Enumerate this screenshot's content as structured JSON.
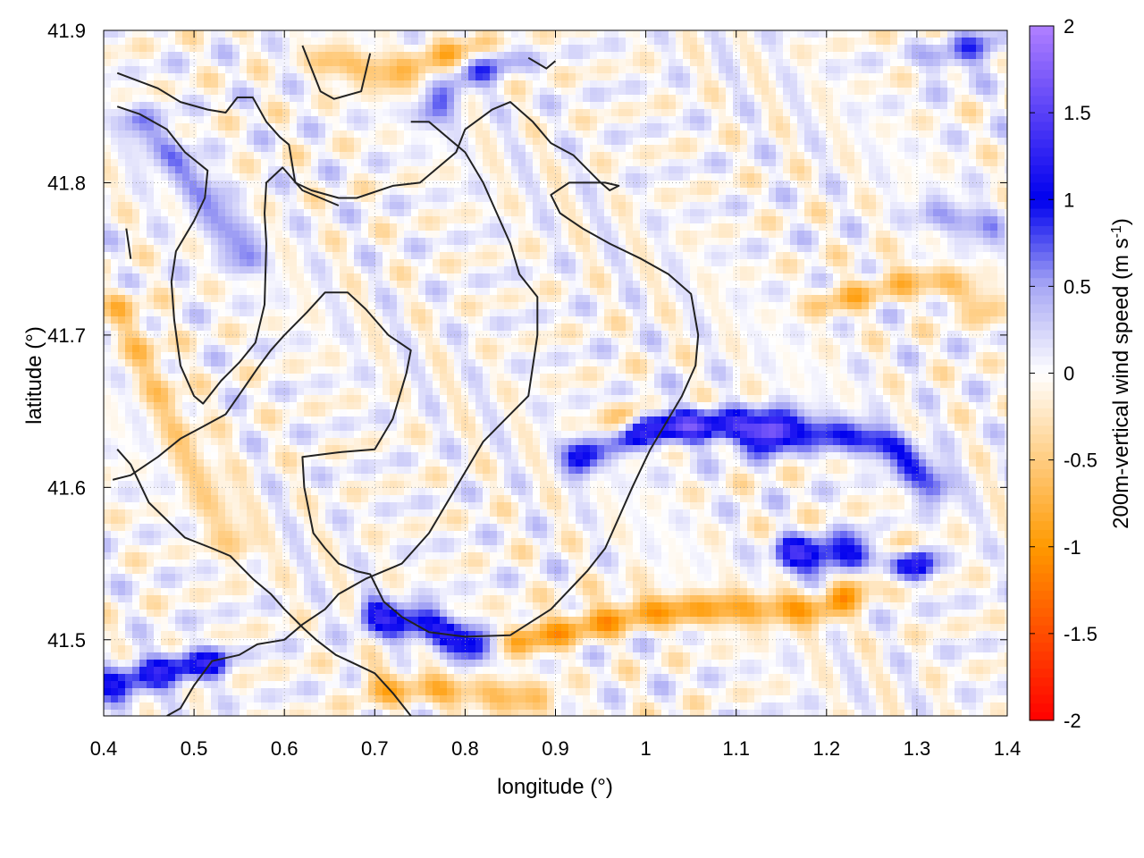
{
  "chart_data": {
    "type": "heatmap",
    "title": "",
    "xlabel": "longitude (°)",
    "ylabel": "latitude (°)",
    "colorbar_label": "200m-vertical wind speed (m s",
    "colorbar_label_sup": "-1",
    "colorbar_label_end": ")",
    "xlim": [
      0.4,
      1.4
    ],
    "ylim": [
      41.45,
      41.9
    ],
    "clim": [
      -2,
      2
    ],
    "grid": true,
    "x_ticks": [
      0.4,
      0.5,
      0.6,
      0.7,
      0.8,
      0.9,
      1.0,
      1.1,
      1.2,
      1.3,
      1.4
    ],
    "x_tick_labels": [
      "0.4",
      "0.5",
      "0.6",
      "0.7",
      "0.8",
      "0.9",
      "1",
      "1.1",
      "1.2",
      "1.3",
      "1.4"
    ],
    "y_ticks": [
      41.5,
      41.6,
      41.7,
      41.8,
      41.9
    ],
    "y_tick_labels": [
      "41.5",
      "41.6",
      "41.7",
      "41.8",
      "41.9"
    ],
    "colorbar_ticks": [
      2,
      1.5,
      1,
      0.5,
      0,
      -0.5,
      -1,
      -1.5,
      -2
    ],
    "colorbar_tick_labels": [
      "2",
      "1.5",
      "1",
      "0.5",
      "0",
      "-0.5",
      "-1",
      "-1.5",
      "-2"
    ],
    "colormap": [
      {
        "v": -2.0,
        "color": "#ff0000"
      },
      {
        "v": -1.0,
        "color": "#ff9900"
      },
      {
        "v": -0.5,
        "color": "#ffcc80"
      },
      {
        "v": 0.0,
        "color": "#ffffff"
      },
      {
        "v": 0.5,
        "color": "#a8a8f4"
      },
      {
        "v": 1.0,
        "color": "#0000ee"
      },
      {
        "v": 2.0,
        "color": "#b080ff"
      }
    ],
    "features": [
      {
        "name": "NW diagonal band",
        "sign": 1,
        "amp": 0.6,
        "points": [
          [
            0.44,
            41.84
          ],
          [
            0.5,
            41.8
          ],
          [
            0.56,
            41.75
          ]
        ]
      },
      {
        "name": "central updraft band",
        "sign": 1,
        "amp": 1.3,
        "points": [
          [
            0.93,
            41.62
          ],
          [
            1.0,
            41.64
          ],
          [
            1.08,
            41.64
          ],
          [
            1.14,
            41.635
          ]
        ]
      },
      {
        "name": "east updraft band",
        "sign": 1,
        "amp": 0.9,
        "points": [
          [
            1.14,
            41.64
          ],
          [
            1.22,
            41.635
          ],
          [
            1.28,
            41.625
          ],
          [
            1.32,
            41.6
          ]
        ]
      },
      {
        "name": "SE updraft band",
        "sign": 1,
        "amp": 1.2,
        "points": [
          [
            1.16,
            41.555
          ],
          [
            1.24,
            41.555
          ],
          [
            1.3,
            41.55
          ]
        ]
      },
      {
        "name": "south updraft band",
        "sign": 1,
        "amp": 1.1,
        "points": [
          [
            0.7,
            41.515
          ],
          [
            0.76,
            41.51
          ],
          [
            0.81,
            41.495
          ]
        ]
      },
      {
        "name": "SW updraft band",
        "sign": 1,
        "amp": 1.0,
        "points": [
          [
            0.41,
            41.47
          ],
          [
            0.47,
            41.48
          ],
          [
            0.52,
            41.485
          ]
        ]
      },
      {
        "name": "north updraft",
        "sign": 1,
        "amp": 0.6,
        "points": [
          [
            0.76,
            41.845
          ],
          [
            0.8,
            41.87
          ],
          [
            0.84,
            41.88
          ]
        ]
      },
      {
        "name": "NE updraft",
        "sign": 1,
        "amp": 0.6,
        "points": [
          [
            1.33,
            41.88
          ],
          [
            1.38,
            41.89
          ]
        ]
      },
      {
        "name": "east edge updraft",
        "sign": 1,
        "amp": 0.5,
        "points": [
          [
            1.32,
            41.78
          ],
          [
            1.38,
            41.77
          ]
        ]
      },
      {
        "name": "downdraft near central band",
        "sign": -1,
        "amp": 0.9,
        "points": [
          [
            0.955,
            41.63
          ],
          [
            0.98,
            41.645
          ]
        ]
      },
      {
        "name": "SE downdraft region",
        "sign": -1,
        "amp": 0.8,
        "points": [
          [
            0.86,
            41.5
          ],
          [
            1.0,
            41.52
          ],
          [
            1.1,
            41.52
          ],
          [
            1.2,
            41.52
          ],
          [
            1.28,
            41.56
          ]
        ]
      },
      {
        "name": "south downdraft",
        "sign": -1,
        "amp": 0.6,
        "points": [
          [
            0.7,
            41.47
          ],
          [
            0.8,
            41.465
          ],
          [
            0.88,
            41.46
          ]
        ]
      },
      {
        "name": "north downdraft",
        "sign": -1,
        "amp": 0.6,
        "points": [
          [
            0.65,
            41.88
          ],
          [
            0.72,
            41.87
          ],
          [
            0.81,
            41.89
          ]
        ]
      },
      {
        "name": "east downdraft",
        "sign": -1,
        "amp": 0.5,
        "points": [
          [
            1.2,
            41.72
          ],
          [
            1.3,
            41.74
          ],
          [
            1.38,
            41.72
          ]
        ]
      },
      {
        "name": "west downdraft",
        "sign": -1,
        "amp": 0.5,
        "points": [
          [
            0.42,
            41.72
          ],
          [
            0.5,
            41.62
          ],
          [
            0.55,
            41.56
          ]
        ]
      }
    ],
    "contours": [
      [
        [
          0.415,
          41.872
        ],
        [
          0.46,
          41.862
        ],
        [
          0.485,
          41.853
        ],
        [
          0.515,
          41.848
        ],
        [
          0.535,
          41.846
        ],
        [
          0.548,
          41.856
        ],
        [
          0.565,
          41.856
        ],
        [
          0.58,
          41.84
        ],
        [
          0.595,
          41.83
        ],
        [
          0.605,
          41.825
        ],
        [
          0.612,
          41.8
        ],
        [
          0.63,
          41.795
        ],
        [
          0.66,
          41.79
        ],
        [
          0.68,
          41.79
        ],
        [
          0.72,
          41.798
        ],
        [
          0.75,
          41.8
        ],
        [
          0.77,
          41.81
        ],
        [
          0.79,
          41.82
        ],
        [
          0.8,
          41.835
        ],
        [
          0.83,
          41.848
        ],
        [
          0.85,
          41.853
        ],
        [
          0.875,
          41.84
        ],
        [
          0.895,
          41.826
        ],
        [
          0.92,
          41.818
        ],
        [
          0.95,
          41.8
        ],
        [
          0.96,
          41.795
        ],
        [
          0.97,
          41.798
        ],
        [
          0.955,
          41.8
        ],
        [
          0.915,
          41.8
        ],
        [
          0.895,
          41.792
        ],
        [
          0.905,
          41.78
        ],
        [
          0.93,
          41.77
        ],
        [
          0.96,
          41.76
        ],
        [
          0.995,
          41.75
        ],
        [
          1.025,
          41.74
        ],
        [
          1.05,
          41.727
        ],
        [
          1.058,
          41.7
        ],
        [
          1.055,
          41.68
        ],
        [
          1.04,
          41.66
        ],
        [
          1.02,
          41.64
        ],
        [
          1.005,
          41.625
        ],
        [
          0.985,
          41.6
        ],
        [
          0.97,
          41.58
        ],
        [
          0.955,
          41.56
        ],
        [
          0.935,
          41.545
        ],
        [
          0.895,
          41.52
        ],
        [
          0.85,
          41.503
        ],
        [
          0.8,
          41.502
        ],
        [
          0.76,
          41.505
        ],
        [
          0.73,
          41.515
        ],
        [
          0.71,
          41.525
        ],
        [
          0.695,
          41.543
        ],
        [
          0.68,
          41.545
        ],
        [
          0.66,
          41.55
        ],
        [
          0.645,
          41.56
        ],
        [
          0.632,
          41.57
        ],
        [
          0.622,
          41.6
        ],
        [
          0.62,
          41.62
        ],
        [
          0.66,
          41.623
        ],
        [
          0.7,
          41.625
        ],
        [
          0.72,
          41.645
        ],
        [
          0.735,
          41.675
        ],
        [
          0.74,
          41.69
        ],
        [
          0.715,
          41.7
        ],
        [
          0.69,
          41.717
        ],
        [
          0.67,
          41.728
        ],
        [
          0.645,
          41.728
        ],
        [
          0.625,
          41.715
        ],
        [
          0.6,
          41.7
        ],
        [
          0.585,
          41.69
        ],
        [
          0.57,
          41.678
        ],
        [
          0.555,
          41.665
        ],
        [
          0.535,
          41.648
        ],
        [
          0.51,
          41.64
        ],
        [
          0.485,
          41.632
        ],
        [
          0.46,
          41.62
        ],
        [
          0.43,
          41.608
        ],
        [
          0.41,
          41.605
        ]
      ],
      [
        [
          0.415,
          41.85
        ],
        [
          0.44,
          41.845
        ],
        [
          0.47,
          41.835
        ],
        [
          0.49,
          41.82
        ],
        [
          0.515,
          41.808
        ],
        [
          0.512,
          41.79
        ],
        [
          0.5,
          41.775
        ],
        [
          0.48,
          41.755
        ],
        [
          0.475,
          41.735
        ],
        [
          0.478,
          41.71
        ],
        [
          0.485,
          41.68
        ],
        [
          0.5,
          41.66
        ],
        [
          0.51,
          41.655
        ],
        [
          0.53,
          41.67
        ],
        [
          0.55,
          41.682
        ],
        [
          0.568,
          41.695
        ],
        [
          0.578,
          41.72
        ],
        [
          0.58,
          41.76
        ],
        [
          0.578,
          41.78
        ],
        [
          0.58,
          41.8
        ],
        [
          0.598,
          41.81
        ],
        [
          0.62,
          41.795
        ],
        [
          0.66,
          41.785
        ]
      ],
      [
        [
          0.415,
          41.625
        ],
        [
          0.43,
          41.615
        ],
        [
          0.45,
          41.59
        ],
        [
          0.49,
          41.567
        ],
        [
          0.52,
          41.56
        ],
        [
          0.54,
          41.555
        ],
        [
          0.565,
          41.54
        ],
        [
          0.585,
          41.53
        ],
        [
          0.6,
          41.52
        ],
        [
          0.612,
          41.513
        ],
        [
          0.622,
          41.507
        ],
        [
          0.635,
          41.5
        ],
        [
          0.657,
          41.49
        ],
        [
          0.675,
          41.485
        ],
        [
          0.7,
          41.478
        ],
        [
          0.72,
          41.465
        ],
        [
          0.74,
          41.45
        ]
      ],
      [
        [
          0.47,
          41.45
        ],
        [
          0.485,
          41.455
        ],
        [
          0.5,
          41.47
        ],
        [
          0.52,
          41.486
        ],
        [
          0.55,
          41.49
        ],
        [
          0.57,
          41.497
        ],
        [
          0.6,
          41.5
        ],
        [
          0.62,
          41.51
        ],
        [
          0.645,
          41.52
        ],
        [
          0.66,
          41.53
        ],
        [
          0.69,
          41.54
        ],
        [
          0.73,
          41.55
        ],
        [
          0.76,
          41.57
        ],
        [
          0.78,
          41.59
        ],
        [
          0.8,
          41.61
        ],
        [
          0.82,
          41.63
        ],
        [
          0.845,
          41.645
        ],
        [
          0.87,
          41.66
        ],
        [
          0.88,
          41.7
        ],
        [
          0.88,
          41.725
        ],
        [
          0.86,
          41.74
        ],
        [
          0.85,
          41.76
        ],
        [
          0.835,
          41.78
        ],
        [
          0.82,
          41.8
        ],
        [
          0.8,
          41.82
        ],
        [
          0.76,
          41.84
        ],
        [
          0.74,
          41.84
        ]
      ],
      [
        [
          0.62,
          41.89
        ],
        [
          0.64,
          41.86
        ],
        [
          0.655,
          41.855
        ],
        [
          0.685,
          41.86
        ],
        [
          0.695,
          41.885
        ]
      ],
      [
        [
          0.425,
          41.77
        ],
        [
          0.43,
          41.75
        ]
      ],
      [
        [
          0.87,
          41.882
        ],
        [
          0.89,
          41.875
        ],
        [
          0.9,
          41.88
        ]
      ]
    ]
  }
}
